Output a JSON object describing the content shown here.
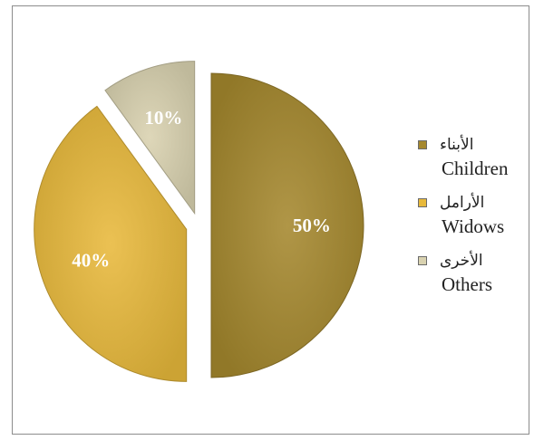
{
  "chart_data": {
    "type": "pie",
    "title": "",
    "slices": [
      {
        "label_ar": "الأبناء",
        "label_en": "Children",
        "value": 50,
        "display": "50%",
        "color": "#A5882E"
      },
      {
        "label_ar": "الأرامل",
        "label_en": "Widows",
        "value": 40,
        "display": "40%",
        "color": "#E8B93B"
      },
      {
        "label_ar": "الأخرى",
        "label_en": "Others",
        "value": 10,
        "display": "10%",
        "color": "#D9D2B0"
      }
    ],
    "legend": {
      "position": "right"
    },
    "exploded": true
  }
}
